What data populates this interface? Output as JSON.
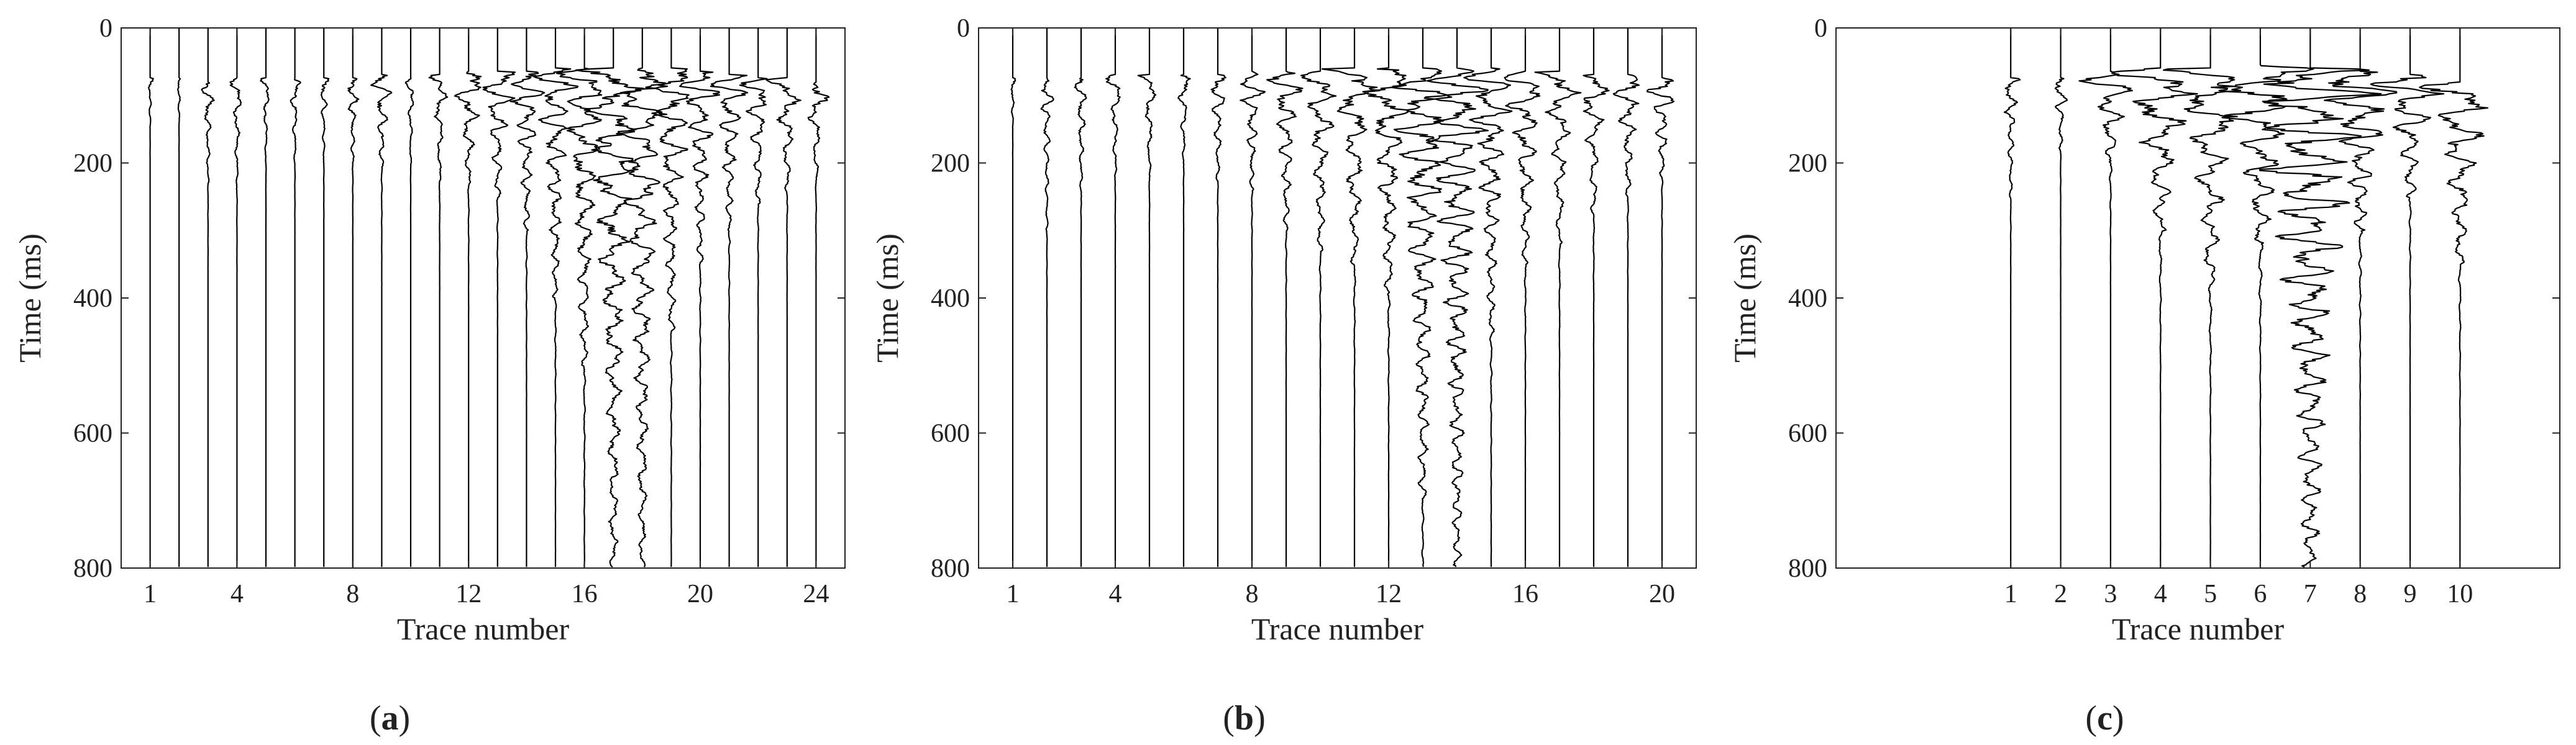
{
  "chart_data": [
    {
      "type": "line",
      "subplot": "wiggle",
      "panel_label": "(a)",
      "panel_letter": "a",
      "xlabel": "Trace number",
      "ylabel": "Time (ms)",
      "ylim": [
        0,
        800
      ],
      "y_inverted": true,
      "y_ticks": [
        0,
        200,
        400,
        600,
        800
      ],
      "x_ticks": [
        1,
        4,
        8,
        12,
        16,
        20,
        24
      ],
      "xlim": [
        0,
        25
      ],
      "grid": false,
      "trace_count": 24,
      "traces": [
        {
          "trace": 1,
          "first_arrival_ms": 75,
          "amplitude": 0.15,
          "decay_end_ms": 150
        },
        {
          "trace": 2,
          "first_arrival_ms": 75,
          "amplitude": 0.12,
          "decay_end_ms": 150
        },
        {
          "trace": 3,
          "first_arrival_ms": 80,
          "amplitude": 0.35,
          "decay_end_ms": 230
        },
        {
          "trace": 4,
          "first_arrival_ms": 75,
          "amplitude": 0.3,
          "decay_end_ms": 240
        },
        {
          "trace": 5,
          "first_arrival_ms": 75,
          "amplitude": 0.25,
          "decay_end_ms": 200
        },
        {
          "trace": 6,
          "first_arrival_ms": 75,
          "amplitude": 0.3,
          "decay_end_ms": 200
        },
        {
          "trace": 7,
          "first_arrival_ms": 75,
          "amplitude": 0.25,
          "decay_end_ms": 200
        },
        {
          "trace": 8,
          "first_arrival_ms": 75,
          "amplitude": 0.35,
          "decay_end_ms": 210
        },
        {
          "trace": 9,
          "first_arrival_ms": 70,
          "amplitude": 0.55,
          "decay_end_ms": 220
        },
        {
          "trace": 10,
          "first_arrival_ms": 75,
          "amplitude": 0.25,
          "decay_end_ms": 200
        },
        {
          "trace": 11,
          "first_arrival_ms": 70,
          "amplitude": 0.45,
          "decay_end_ms": 230
        },
        {
          "trace": 12,
          "first_arrival_ms": 65,
          "amplitude": 0.9,
          "decay_end_ms": 230
        },
        {
          "trace": 13,
          "first_arrival_ms": 65,
          "amplitude": 1.0,
          "decay_end_ms": 250
        },
        {
          "trace": 14,
          "first_arrival_ms": 65,
          "amplitude": 0.9,
          "decay_end_ms": 300
        },
        {
          "trace": 15,
          "first_arrival_ms": 60,
          "amplitude": 1.0,
          "decay_end_ms": 400
        },
        {
          "trace": 16,
          "first_arrival_ms": 60,
          "amplitude": 1.2,
          "decay_end_ms": 500
        },
        {
          "trace": 17,
          "first_arrival_ms": 60,
          "amplitude": 1.3,
          "decay_end_ms": 800
        },
        {
          "trace": 18,
          "first_arrival_ms": 60,
          "amplitude": 1.2,
          "decay_end_ms": 800
        },
        {
          "trace": 19,
          "first_arrival_ms": 60,
          "amplitude": 1.1,
          "decay_end_ms": 450
        },
        {
          "trace": 20,
          "first_arrival_ms": 65,
          "amplitude": 1.0,
          "decay_end_ms": 350
        },
        {
          "trace": 21,
          "first_arrival_ms": 70,
          "amplitude": 0.9,
          "decay_end_ms": 300
        },
        {
          "trace": 22,
          "first_arrival_ms": 75,
          "amplitude": 0.8,
          "decay_end_ms": 260
        },
        {
          "trace": 23,
          "first_arrival_ms": 75,
          "amplitude": 0.8,
          "decay_end_ms": 240
        },
        {
          "trace": 24,
          "first_arrival_ms": 80,
          "amplitude": 0.7,
          "decay_end_ms": 220
        }
      ]
    },
    {
      "type": "line",
      "subplot": "wiggle",
      "panel_label": "(b)",
      "panel_letter": "b",
      "xlabel": "Trace number",
      "ylabel": "Time (ms)",
      "ylim": [
        0,
        800
      ],
      "y_inverted": true,
      "y_ticks": [
        0,
        200,
        400,
        600,
        800
      ],
      "x_ticks": [
        1,
        4,
        8,
        12,
        16,
        20
      ],
      "xlim": [
        0,
        21
      ],
      "grid": false,
      "trace_count": 20,
      "traces": [
        {
          "trace": 1,
          "first_arrival_ms": 75,
          "amplitude": 0.15,
          "decay_end_ms": 150
        },
        {
          "trace": 2,
          "first_arrival_ms": 75,
          "amplitude": 0.3,
          "decay_end_ms": 300
        },
        {
          "trace": 3,
          "first_arrival_ms": 75,
          "amplitude": 0.3,
          "decay_end_ms": 250
        },
        {
          "trace": 4,
          "first_arrival_ms": 70,
          "amplitude": 0.35,
          "decay_end_ms": 220
        },
        {
          "trace": 5,
          "first_arrival_ms": 70,
          "amplitude": 0.35,
          "decay_end_ms": 220
        },
        {
          "trace": 6,
          "first_arrival_ms": 70,
          "amplitude": 0.3,
          "decay_end_ms": 200
        },
        {
          "trace": 7,
          "first_arrival_ms": 70,
          "amplitude": 0.45,
          "decay_end_ms": 230
        },
        {
          "trace": 8,
          "first_arrival_ms": 65,
          "amplitude": 0.6,
          "decay_end_ms": 240
        },
        {
          "trace": 9,
          "first_arrival_ms": 65,
          "amplitude": 0.7,
          "decay_end_ms": 300
        },
        {
          "trace": 10,
          "first_arrival_ms": 65,
          "amplitude": 0.8,
          "decay_end_ms": 330
        },
        {
          "trace": 11,
          "first_arrival_ms": 60,
          "amplitude": 1.0,
          "decay_end_ms": 350
        },
        {
          "trace": 12,
          "first_arrival_ms": 60,
          "amplitude": 1.1,
          "decay_end_ms": 400
        },
        {
          "trace": 13,
          "first_arrival_ms": 60,
          "amplitude": 1.2,
          "decay_end_ms": 700
        },
        {
          "trace": 14,
          "first_arrival_ms": 60,
          "amplitude": 1.2,
          "decay_end_ms": 800
        },
        {
          "trace": 15,
          "first_arrival_ms": 60,
          "amplitude": 1.0,
          "decay_end_ms": 450
        },
        {
          "trace": 16,
          "first_arrival_ms": 65,
          "amplitude": 0.9,
          "decay_end_ms": 350
        },
        {
          "trace": 17,
          "first_arrival_ms": 65,
          "amplitude": 0.8,
          "decay_end_ms": 320
        },
        {
          "trace": 18,
          "first_arrival_ms": 70,
          "amplitude": 0.7,
          "decay_end_ms": 280
        },
        {
          "trace": 19,
          "first_arrival_ms": 70,
          "amplitude": 0.7,
          "decay_end_ms": 250
        },
        {
          "trace": 20,
          "first_arrival_ms": 75,
          "amplitude": 0.7,
          "decay_end_ms": 220
        }
      ]
    },
    {
      "type": "line",
      "subplot": "wiggle",
      "panel_label": "(c)",
      "panel_letter": "c",
      "xlabel": "Trace number",
      "ylabel": "Time (ms)",
      "ylim": [
        0,
        800
      ],
      "y_inverted": true,
      "y_ticks": [
        0,
        200,
        400,
        600,
        800
      ],
      "x_ticks": [
        1,
        2,
        3,
        4,
        5,
        6,
        7,
        8,
        9,
        10
      ],
      "xlim": [
        -2.5,
        12
      ],
      "grid": false,
      "trace_count": 10,
      "traces": [
        {
          "trace": 1,
          "first_arrival_ms": 75,
          "amplitude": 0.25,
          "decay_end_ms": 250
        },
        {
          "trace": 2,
          "first_arrival_ms": 75,
          "amplitude": 0.3,
          "decay_end_ms": 180
        },
        {
          "trace": 3,
          "first_arrival_ms": 65,
          "amplitude": 0.9,
          "decay_end_ms": 200
        },
        {
          "trace": 4,
          "first_arrival_ms": 60,
          "amplitude": 1.2,
          "decay_end_ms": 300
        },
        {
          "trace": 5,
          "first_arrival_ms": 60,
          "amplitude": 1.1,
          "decay_end_ms": 380
        },
        {
          "trace": 6,
          "first_arrival_ms": 55,
          "amplitude": 1.5,
          "decay_end_ms": 320
        },
        {
          "trace": 7,
          "first_arrival_ms": 60,
          "amplitude": 1.6,
          "decay_end_ms": 800
        },
        {
          "trace": 8,
          "first_arrival_ms": 65,
          "amplitude": 1.3,
          "decay_end_ms": 300
        },
        {
          "trace": 9,
          "first_arrival_ms": 70,
          "amplitude": 1.0,
          "decay_end_ms": 250
        },
        {
          "trace": 10,
          "first_arrival_ms": 80,
          "amplitude": 1.0,
          "decay_end_ms": 350
        }
      ]
    }
  ]
}
